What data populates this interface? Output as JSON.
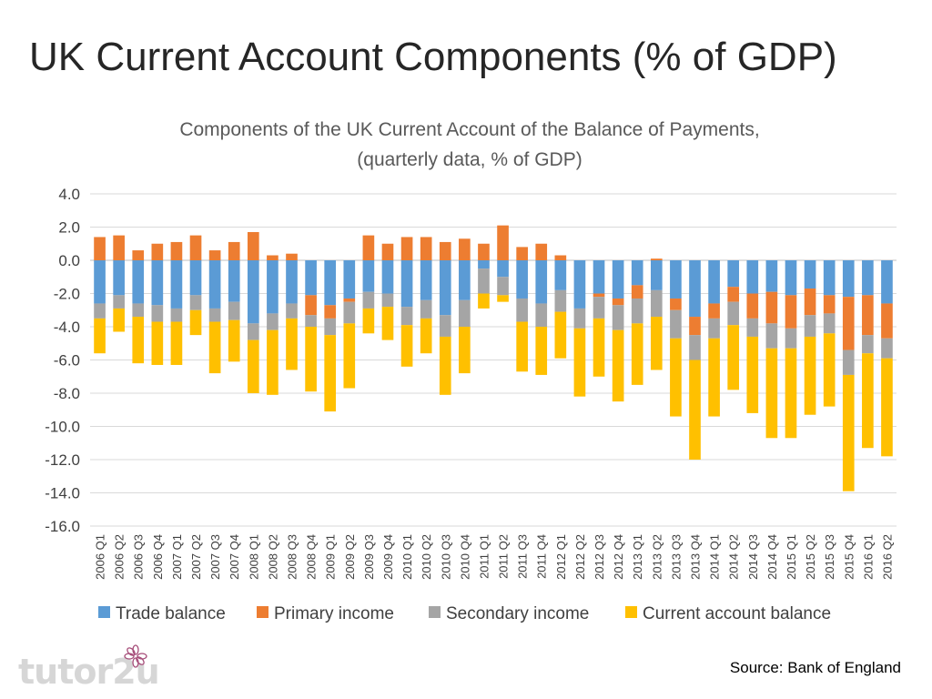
{
  "slide": {
    "title": "UK Current Account Components (% of GDP)",
    "source": "Source: Bank of England",
    "logo_text": "tutor2u"
  },
  "chart_data": {
    "type": "bar",
    "stacked": true,
    "title": "Components of the UK Current Account of the Balance of Payments,",
    "subtitle": "(quarterly data, % of GDP)",
    "xlabel": "",
    "ylabel": "",
    "ylim": [
      -16,
      4
    ],
    "yticks": [
      4,
      2,
      0,
      -2,
      -4,
      -6,
      -8,
      -10,
      -12,
      -14,
      -16
    ],
    "ytick_labels": [
      "4.0",
      "2.0",
      "0.0",
      "-2.0",
      "-4.0",
      "-6.0",
      "-8.0",
      "-10.0",
      "-12.0",
      "-14.0",
      "-16.0"
    ],
    "grid": true,
    "legend_position": "bottom",
    "categories": [
      "2006 Q1",
      "2006 Q2",
      "2006 Q3",
      "2006 Q4",
      "2007 Q1",
      "2007 Q2",
      "2007 Q3",
      "2007 Q4",
      "2008 Q1",
      "2008 Q2",
      "2008 Q3",
      "2008 Q4",
      "2009 Q1",
      "2009 Q2",
      "2009 Q3",
      "2009 Q4",
      "2010 Q1",
      "2010 Q2",
      "2010 Q3",
      "2010 Q4",
      "2011 Q1",
      "2011 Q2",
      "2011 Q3",
      "2011 Q4",
      "2012 Q1",
      "2012 Q2",
      "2012 Q3",
      "2012 Q4",
      "2013 Q1",
      "2013 Q2",
      "2013 Q3",
      "2013 Q4",
      "2014 Q1",
      "2014 Q2",
      "2014 Q3",
      "2014 Q4",
      "2015 Q1",
      "2015 Q2",
      "2015 Q3",
      "2015 Q4",
      "2016 Q1",
      "2016 Q2"
    ],
    "series": [
      {
        "name": "Trade balance",
        "color": "#5b9bd5",
        "values": [
          -2.6,
          -2.1,
          -2.6,
          -2.7,
          -2.9,
          -2.1,
          -2.9,
          -2.5,
          -3.8,
          -3.2,
          -2.6,
          -2.1,
          -2.7,
          -2.3,
          -1.9,
          -2.0,
          -2.8,
          -2.4,
          -3.3,
          -2.4,
          -0.5,
          -1.0,
          -2.3,
          -2.6,
          -1.8,
          -2.9,
          -2.0,
          -2.3,
          -1.5,
          -1.8,
          -2.3,
          -3.4,
          -2.6,
          -1.6,
          -2.0,
          -1.9,
          -2.1,
          -1.7,
          -2.1,
          -2.2,
          -2.1,
          -2.6
        ]
      },
      {
        "name": "Primary income",
        "color": "#ed7d31",
        "values": [
          1.4,
          1.5,
          0.6,
          1.0,
          1.1,
          1.5,
          0.6,
          1.1,
          1.7,
          0.3,
          0.4,
          -1.2,
          -0.8,
          -0.2,
          1.5,
          1.0,
          1.4,
          1.4,
          1.1,
          1.3,
          1.0,
          2.1,
          0.8,
          1.0,
          0.3,
          0.0,
          -0.2,
          -0.4,
          -0.8,
          0.1,
          -0.7,
          -1.1,
          -0.9,
          -0.9,
          -1.5,
          -1.9,
          -2.0,
          -1.6,
          -1.1,
          -3.2,
          -2.4,
          -2.1
        ]
      },
      {
        "name": "Secondary income",
        "color": "#a5a5a5",
        "values": [
          -0.9,
          -0.8,
          -0.8,
          -1.0,
          -0.8,
          -0.9,
          -0.8,
          -1.1,
          -1.0,
          -1.0,
          -0.9,
          -0.7,
          -1.0,
          -1.3,
          -1.0,
          -0.8,
          -1.1,
          -1.1,
          -1.3,
          -1.6,
          -1.5,
          -1.1,
          -1.4,
          -1.4,
          -1.3,
          -1.2,
          -1.3,
          -1.5,
          -1.5,
          -1.6,
          -1.7,
          -1.5,
          -1.2,
          -1.4,
          -1.1,
          -1.5,
          -1.2,
          -1.3,
          -1.2,
          -1.5,
          -1.1,
          -1.2
        ]
      },
      {
        "name": "Current account balance",
        "color": "#ffc000",
        "values": [
          -2.1,
          -1.4,
          -2.8,
          -2.6,
          -2.6,
          -1.5,
          -3.1,
          -2.5,
          -3.2,
          -3.9,
          -3.1,
          -3.9,
          -4.6,
          -3.9,
          -1.5,
          -2.0,
          -2.5,
          -2.1,
          -3.5,
          -2.8,
          -0.9,
          -0.4,
          -3.0,
          -2.9,
          -2.8,
          -4.1,
          -3.5,
          -4.3,
          -3.7,
          -3.2,
          -4.7,
          -6.0,
          -4.7,
          -3.9,
          -4.6,
          -5.4,
          -5.4,
          -4.7,
          -4.4,
          -7.0,
          -5.7,
          -5.9
        ]
      }
    ]
  }
}
